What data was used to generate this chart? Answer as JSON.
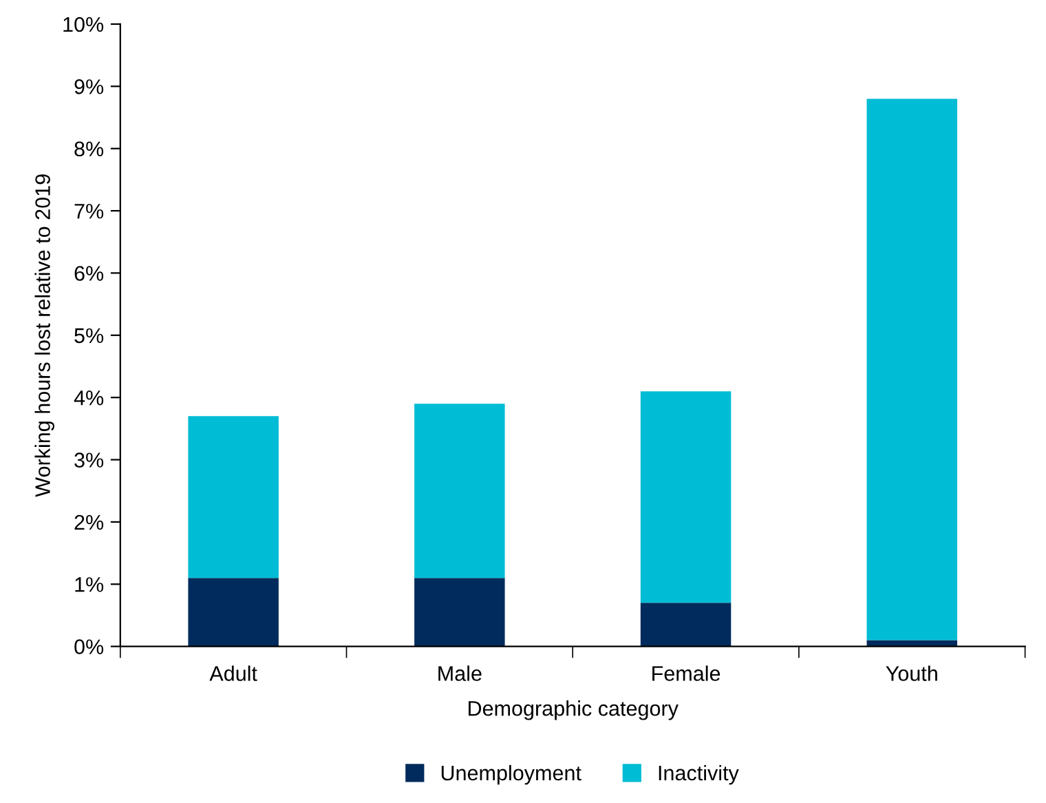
{
  "chart_data": {
    "type": "bar",
    "stacked": true,
    "xlabel": "Demographic category",
    "ylabel": "Working hours lost relative to 2019",
    "categories": [
      "Adult",
      "Male",
      "Female",
      "Youth"
    ],
    "series": [
      {
        "name": "Unemployment",
        "color": "#002b5c",
        "values": [
          1.1,
          1.1,
          0.7,
          0.1
        ]
      },
      {
        "name": "Inactivity",
        "color": "#00bcd4",
        "values": [
          2.6,
          2.8,
          3.4,
          8.7
        ]
      }
    ],
    "ylim": [
      0,
      10
    ],
    "yticks": [
      {
        "value": 0,
        "label": "0%"
      },
      {
        "value": 1,
        "label": "1%"
      },
      {
        "value": 2,
        "label": "2%"
      },
      {
        "value": 3,
        "label": "3%"
      },
      {
        "value": 4,
        "label": "4%"
      },
      {
        "value": 5,
        "label": "5%"
      },
      {
        "value": 6,
        "label": "6%"
      },
      {
        "value": 7,
        "label": "7%"
      },
      {
        "value": 8,
        "label": "8%"
      },
      {
        "value": 9,
        "label": "9%"
      },
      {
        "value": 10,
        "label": "10%"
      }
    ],
    "grid": false,
    "legend": "bottom"
  }
}
